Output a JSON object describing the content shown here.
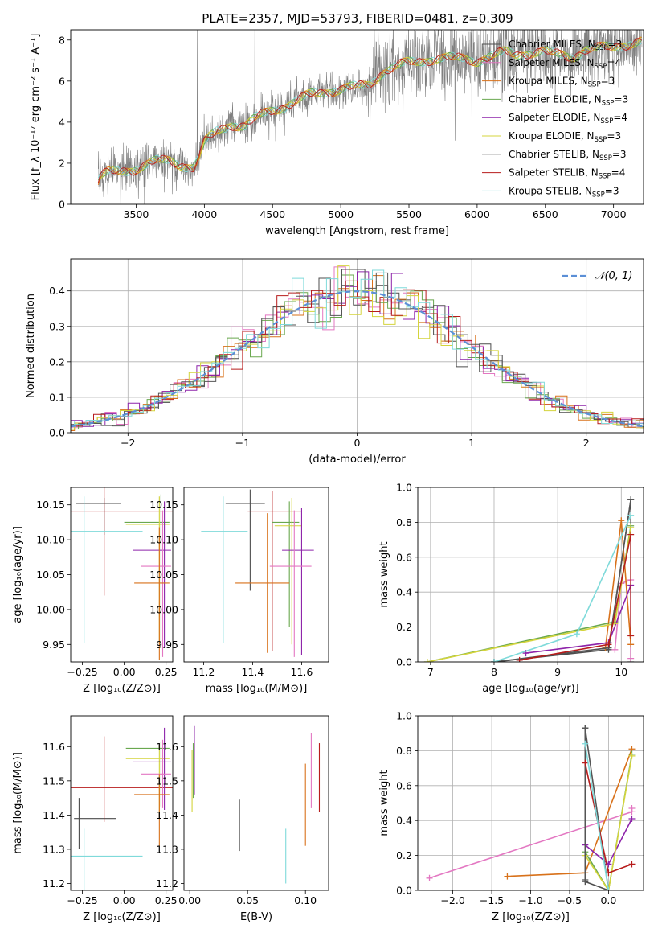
{
  "figure_title": "PLATE=2357, MJD=53793, FIBERID=0481, z=0.309",
  "colors": {
    "Chabrier MILES": "#4c4c4c",
    "Salpeter MILES": "#e377c2",
    "Kroupa MILES": "#d8711a",
    "Chabrier ELODIE": "#6aa84f",
    "Salpeter ELODIE": "#8e24aa",
    "Kroupa ELODIE": "#d4d43c",
    "Chabrier STELIB": "#555555",
    "Salpeter STELIB": "#b71c1c",
    "Kroupa STELIB": "#7fdada",
    "normal": "#5b8fd6",
    "data": "#808080"
  },
  "chart_data": [
    {
      "id": "spectrum",
      "type": "line",
      "title": "PLATE=2357, MJD=53793, FIBERID=0481, z=0.309",
      "xlabel": "wavelength [Angstrom, rest frame]",
      "ylabel": "Flux [f_λ 10⁻¹⁷ erg cm⁻² s⁻¹ A⁻¹]",
      "xlim": [
        3020,
        7220
      ],
      "ylim": [
        0,
        8.5
      ],
      "xticks": [
        3500,
        4000,
        4500,
        5000,
        5500,
        6000,
        6500,
        7000
      ],
      "yticks": [
        0,
        2,
        4,
        6,
        8
      ],
      "grid": false,
      "legend_position": "top-right",
      "legend": [
        {
          "label": "Chabrier MILES, N",
          "sub": "SSP",
          "suffix": "=3"
        },
        {
          "label": "Salpeter MILES, N",
          "sub": "SSP",
          "suffix": "=4"
        },
        {
          "label": "Kroupa MILES, N",
          "sub": "SSP",
          "suffix": "=3"
        },
        {
          "label": "Chabrier ELODIE, N",
          "sub": "SSP",
          "suffix": "=3"
        },
        {
          "label": "Salpeter ELODIE, N",
          "sub": "SSP",
          "suffix": "=4"
        },
        {
          "label": "Kroupa ELODIE, N",
          "sub": "SSP",
          "suffix": "=3"
        },
        {
          "label": "Chabrier STELIB, N",
          "sub": "SSP",
          "suffix": "=3"
        },
        {
          "label": "Salpeter STELIB, N",
          "sub": "SSP",
          "suffix": "=4"
        },
        {
          "label": "Kroupa STELIB, N",
          "sub": "SSP",
          "suffix": "=3"
        }
      ],
      "continuum": [
        [
          3220,
          1.1
        ],
        [
          3240,
          1.4
        ],
        [
          3300,
          1.55
        ],
        [
          3400,
          1.6
        ],
        [
          3480,
          1.7
        ],
        [
          3550,
          1.9
        ],
        [
          3650,
          2.1
        ],
        [
          3750,
          2.1
        ],
        [
          3850,
          1.9
        ],
        [
          3920,
          1.8
        ],
        [
          3960,
          2.3
        ],
        [
          4000,
          3.0
        ],
        [
          4100,
          3.6
        ],
        [
          4200,
          3.9
        ],
        [
          4300,
          3.8
        ],
        [
          4400,
          4.3
        ],
        [
          4500,
          4.6
        ],
        [
          4600,
          4.8
        ],
        [
          4700,
          5.1
        ],
        [
          4800,
          5.4
        ],
        [
          4900,
          5.5
        ],
        [
          5000,
          5.6
        ],
        [
          5100,
          5.7
        ],
        [
          5200,
          5.8
        ],
        [
          5300,
          6.4
        ],
        [
          5400,
          6.7
        ],
        [
          5500,
          6.9
        ],
        [
          5600,
          7.0
        ],
        [
          5700,
          7.1
        ],
        [
          5800,
          7.1
        ],
        [
          5900,
          7.1
        ],
        [
          6000,
          7.0
        ],
        [
          6100,
          7.2
        ],
        [
          6200,
          7.4
        ],
        [
          6300,
          7.3
        ],
        [
          6400,
          7.4
        ],
        [
          6500,
          7.4
        ],
        [
          6600,
          7.3
        ],
        [
          6700,
          7.2
        ],
        [
          6800,
          7.5
        ],
        [
          6900,
          7.6
        ],
        [
          7000,
          7.7
        ],
        [
          7100,
          7.8
        ],
        [
          7200,
          7.9
        ]
      ]
    },
    {
      "id": "residuals",
      "type": "step",
      "xlabel": "(data-model)/error",
      "ylabel": "Normed distribution",
      "xlim": [
        -2.5,
        2.5
      ],
      "ylim": [
        0,
        0.49
      ],
      "xticks": [
        -2,
        -1,
        0,
        1,
        2
      ],
      "yticks": [
        0.0,
        0.1,
        0.2,
        0.3,
        0.4
      ],
      "grid": true,
      "legend_position": "top-right",
      "legend_label": "𝒩(0, 1)"
    },
    {
      "id": "age-vs-Z",
      "type": "errorbar",
      "xlabel": "Z [log₁₀(Z/Z⊙)]",
      "ylabel": "age  [log₁₀(age/yr)]",
      "xlim": [
        -0.32,
        0.29
      ],
      "ylim": [
        9.925,
        10.175
      ],
      "xticks": [
        -0.25,
        0.0,
        0.25
      ],
      "yticks": [
        9.95,
        10.0,
        10.05,
        10.1,
        10.15
      ],
      "points": [
        {
          "model": "Chabrier MILES",
          "x": -0.12,
          "xerr": [
            0.17,
            0.1
          ],
          "y": 10.152,
          "yerr": [
            0.045,
            0.008
          ]
        },
        {
          "model": "Salpeter STELIB",
          "x": -0.12,
          "xerr": [
            0.2,
            0.42
          ],
          "y": 10.14,
          "yerr": [
            0.12,
            0.035
          ]
        },
        {
          "model": "Kroupa STELIB",
          "x": -0.24,
          "xerr": [
            0.33,
            0.35
          ],
          "y": 10.112,
          "yerr": [
            0.16,
            0.05
          ]
        },
        {
          "model": "Chabrier ELODIE",
          "x": 0.22,
          "xerr": [
            0.22,
            0.05
          ],
          "y": 10.125,
          "yerr": [
            0.18,
            0.04
          ]
        },
        {
          "model": "Kroupa ELODIE",
          "x": 0.21,
          "xerr": [
            0.2,
            0.06
          ],
          "y": 10.122,
          "yerr": [
            0.17,
            0.04
          ]
        },
        {
          "model": "Salpeter ELODIE",
          "x": 0.24,
          "xerr": [
            0.19,
            0.04
          ],
          "y": 10.085,
          "yerr": [
            0.14,
            0.07
          ]
        },
        {
          "model": "Salpeter MILES",
          "x": 0.23,
          "xerr": [
            0.13,
            0.05
          ],
          "y": 10.062,
          "yerr": [
            0.13,
            0.08
          ]
        },
        {
          "model": "Kroupa MILES",
          "x": 0.21,
          "xerr": [
            0.15,
            0.06
          ],
          "y": 10.038,
          "yerr": [
            0.11,
            0.08
          ]
        }
      ]
    },
    {
      "id": "age-vs-mass",
      "type": "errorbar",
      "xlabel": "mass [log₁₀(M/M⊙)]",
      "ylabel": "",
      "xlim": [
        11.12,
        11.71
      ],
      "ylim": [
        9.925,
        10.175
      ],
      "xticks": [
        11.2,
        11.4,
        11.6
      ],
      "yticks": [
        9.95,
        10.0,
        10.05,
        10.1,
        10.15
      ],
      "points": [
        {
          "model": "Chabrier MILES",
          "x": 11.39,
          "xerr": [
            0.1,
            0.06
          ],
          "y": 10.152,
          "yerr": [
            0.125,
            0.02
          ]
        },
        {
          "model": "Salpeter STELIB",
          "x": 11.48,
          "xerr": [
            0.1,
            0.12
          ],
          "y": 10.14,
          "yerr": [
            0.2,
            0.03
          ]
        },
        {
          "model": "Kroupa STELIB",
          "x": 11.28,
          "xerr": [
            0.09,
            0.1
          ],
          "y": 10.112,
          "yerr": [
            0.16,
            0.05
          ]
        },
        {
          "model": "Chabrier ELODIE",
          "x": 11.55,
          "xerr": [
            0.07,
            0.04
          ],
          "y": 10.125,
          "yerr": [
            0.15,
            0.03
          ]
        },
        {
          "model": "Kroupa ELODIE",
          "x": 11.56,
          "xerr": [
            0.07,
            0.04
          ],
          "y": 10.12,
          "yerr": [
            0.17,
            0.04
          ]
        },
        {
          "model": "Salpeter ELODIE",
          "x": 11.6,
          "xerr": [
            0.08,
            0.05
          ],
          "y": 10.085,
          "yerr": [
            0.15,
            0.06
          ]
        },
        {
          "model": "Salpeter MILES",
          "x": 11.57,
          "xerr": [
            0.1,
            0.07
          ],
          "y": 10.062,
          "yerr": [
            0.13,
            0.08
          ]
        },
        {
          "model": "Kroupa MILES",
          "x": 11.46,
          "xerr": [
            0.13,
            0.09
          ],
          "y": 10.038,
          "yerr": [
            0.1,
            0.1
          ]
        }
      ]
    },
    {
      "id": "weight-vs-age",
      "type": "line",
      "xlabel": "age  [log₁₀(age/yr)]",
      "ylabel": "mass weight",
      "xlim": [
        6.8,
        10.35
      ],
      "ylim": [
        0,
        1.0
      ],
      "xticks": [
        7,
        8,
        9,
        10
      ],
      "yticks": [
        0.0,
        0.2,
        0.4,
        0.6,
        0.8,
        1.0
      ],
      "grid": true,
      "series": [
        {
          "model": "Chabrier MILES",
          "x": [
            8.0,
            9.8,
            10.15,
            10.15
          ],
          "y": [
            0.0,
            0.07,
            0.93,
            0.0
          ]
        },
        {
          "model": "Salpeter MILES",
          "x": [
            9.9,
            10.0,
            10.15,
            10.15
          ],
          "y": [
            0.07,
            0.45,
            0.47,
            0.02
          ]
        },
        {
          "model": "Kroupa MILES",
          "x": [
            9.75,
            10.0,
            10.15
          ],
          "y": [
            0.08,
            0.81,
            0.1
          ]
        },
        {
          "model": "Chabrier ELODIE",
          "x": [
            6.95,
            9.9,
            10.15
          ],
          "y": [
            0.0,
            0.23,
            0.78
          ]
        },
        {
          "model": "Salpeter ELODIE",
          "x": [
            8.5,
            9.8,
            10.15
          ],
          "y": [
            0.05,
            0.11,
            0.44
          ]
        },
        {
          "model": "Kroupa ELODIE",
          "x": [
            6.95,
            9.9,
            10.15
          ],
          "y": [
            0.0,
            0.22,
            0.77
          ]
        },
        {
          "model": "Chabrier STELIB",
          "x": [
            8.0,
            9.8,
            10.15
          ],
          "y": [
            0.0,
            0.08,
            0.93
          ]
        },
        {
          "model": "Salpeter STELIB",
          "x": [
            8.4,
            9.8,
            10.15,
            10.15
          ],
          "y": [
            0.01,
            0.1,
            0.73,
            0.15
          ]
        },
        {
          "model": "Kroupa STELIB",
          "x": [
            8.0,
            9.3,
            10.15
          ],
          "y": [
            0.0,
            0.16,
            0.84
          ]
        }
      ]
    },
    {
      "id": "mass-vs-Z",
      "type": "errorbar",
      "xlabel": "Z [log₁₀(Z/Z⊙)]",
      "ylabel": "mass [log₁₀(M/M⊙)]",
      "xlim": [
        -0.32,
        0.29
      ],
      "ylim": [
        11.18,
        11.69
      ],
      "xticks": [
        -0.25,
        0.0,
        0.25
      ],
      "yticks": [
        11.2,
        11.3,
        11.4,
        11.5,
        11.6
      ],
      "points": [
        {
          "model": "Chabrier MILES",
          "x": -0.27,
          "xerr": [
            0.03,
            0.22
          ],
          "y": 11.39,
          "yerr": [
            0.09,
            0.06
          ]
        },
        {
          "model": "Salpeter STELIB",
          "x": -0.12,
          "xerr": [
            0.2,
            0.42
          ],
          "y": 11.48,
          "yerr": [
            0.1,
            0.15
          ]
        },
        {
          "model": "Kroupa STELIB",
          "x": -0.24,
          "xerr": [
            0.33,
            0.35
          ],
          "y": 11.28,
          "yerr": [
            0.1,
            0.08
          ]
        },
        {
          "model": "Chabrier ELODIE",
          "x": 0.22,
          "xerr": [
            0.21,
            0.05
          ],
          "y": 11.595,
          "yerr": [
            0.17,
            0.02
          ]
        },
        {
          "model": "Kroupa ELODIE",
          "x": 0.21,
          "xerr": [
            0.2,
            0.06
          ],
          "y": 11.565,
          "yerr": [
            0.16,
            0.04
          ]
        },
        {
          "model": "Salpeter ELODIE",
          "x": 0.24,
          "xerr": [
            0.19,
            0.04
          ],
          "y": 11.555,
          "yerr": [
            0.14,
            0.1
          ]
        },
        {
          "model": "Salpeter MILES",
          "x": 0.23,
          "xerr": [
            0.13,
            0.05
          ],
          "y": 11.52,
          "yerr": [
            0.1,
            0.1
          ]
        },
        {
          "model": "Kroupa MILES",
          "x": 0.21,
          "xerr": [
            0.15,
            0.06
          ],
          "y": 11.46,
          "yerr": [
            0.15,
            0.06
          ]
        }
      ]
    },
    {
      "id": "mass-vs-EBV",
      "type": "errorbar",
      "xlabel": "E(B-V)",
      "ylabel": "",
      "xlim": [
        -0.005,
        0.12
      ],
      "ylim": [
        11.18,
        11.69
      ],
      "xticks": [
        0.0,
        0.05,
        0.1
      ],
      "yticks": [
        11.2,
        11.3,
        11.4,
        11.5,
        11.6
      ],
      "points": [
        {
          "model": "Chabrier MILES",
          "x": 0.043,
          "xerr": [
            0,
            0
          ],
          "y": 11.37,
          "yerr": [
            0.075,
            0.075
          ]
        },
        {
          "model": "Kroupa STELIB",
          "x": 0.083,
          "xerr": [
            0,
            0
          ],
          "y": 11.28,
          "yerr": [
            0.08,
            0.08
          ]
        },
        {
          "model": "Kroupa MILES",
          "x": 0.1,
          "xerr": [
            0,
            0
          ],
          "y": 11.43,
          "yerr": [
            0.12,
            0.12
          ]
        },
        {
          "model": "Salpeter MILES",
          "x": 0.105,
          "xerr": [
            0,
            0
          ],
          "y": 11.53,
          "yerr": [
            0.11,
            0.11
          ]
        },
        {
          "model": "Salpeter STELIB",
          "x": 0.112,
          "xerr": [
            0,
            0
          ],
          "y": 11.51,
          "yerr": [
            0.1,
            0.1
          ]
        },
        {
          "model": "Kroupa ELODIE",
          "x": 0.002,
          "xerr": [
            0,
            0
          ],
          "y": 11.5,
          "yerr": [
            0.09,
            0.09
          ]
        },
        {
          "model": "Salpeter ELODIE",
          "x": 0.004,
          "xerr": [
            0,
            0
          ],
          "y": 11.56,
          "yerr": [
            0.1,
            0.1
          ]
        },
        {
          "model": "Chabrier ELODIE",
          "x": 0.003,
          "xerr": [
            0,
            0
          ],
          "y": 11.53,
          "yerr": [
            0.08,
            0.08
          ]
        }
      ]
    },
    {
      "id": "weight-vs-Z",
      "type": "line",
      "xlabel": "Z [log₁₀(Z/Z⊙)]",
      "ylabel": "mass weight",
      "xlim": [
        -2.45,
        0.45
      ],
      "ylim": [
        0,
        1.0
      ],
      "xticks": [
        -2.0,
        -1.5,
        -1.0,
        -0.5,
        0.0
      ],
      "yticks": [
        0.0,
        0.2,
        0.4,
        0.6,
        0.8,
        1.0
      ],
      "grid": true,
      "series": [
        {
          "model": "Chabrier MILES",
          "x": [
            -0.3,
            -0.3,
            0.0
          ],
          "y": [
            0.93,
            0.05,
            0.0
          ]
        },
        {
          "model": "Salpeter MILES",
          "x": [
            -2.3,
            0.3,
            0.3
          ],
          "y": [
            0.07,
            0.45,
            0.47
          ]
        },
        {
          "model": "Kroupa MILES",
          "x": [
            -1.3,
            -0.3,
            0.3
          ],
          "y": [
            0.08,
            0.1,
            0.81
          ]
        },
        {
          "model": "Chabrier ELODIE",
          "x": [
            -0.3,
            0.0,
            0.3
          ],
          "y": [
            0.22,
            0.0,
            0.78
          ]
        },
        {
          "model": "Salpeter ELODIE",
          "x": [
            -0.3,
            0.0,
            0.3
          ],
          "y": [
            0.26,
            0.15,
            0.41
          ]
        },
        {
          "model": "Kroupa ELODIE",
          "x": [
            -0.3,
            0.0,
            0.3
          ],
          "y": [
            0.2,
            0.0,
            0.77
          ]
        },
        {
          "model": "Chabrier STELIB",
          "x": [
            -0.3,
            -0.3,
            0.0
          ],
          "y": [
            0.06,
            0.93,
            0.0
          ]
        },
        {
          "model": "Salpeter STELIB",
          "x": [
            -0.3,
            0.0,
            0.3
          ],
          "y": [
            0.73,
            0.1,
            0.15
          ]
        },
        {
          "model": "Kroupa STELIB",
          "x": [
            -0.3,
            0.0
          ],
          "y": [
            0.84,
            0.0
          ]
        }
      ]
    }
  ]
}
